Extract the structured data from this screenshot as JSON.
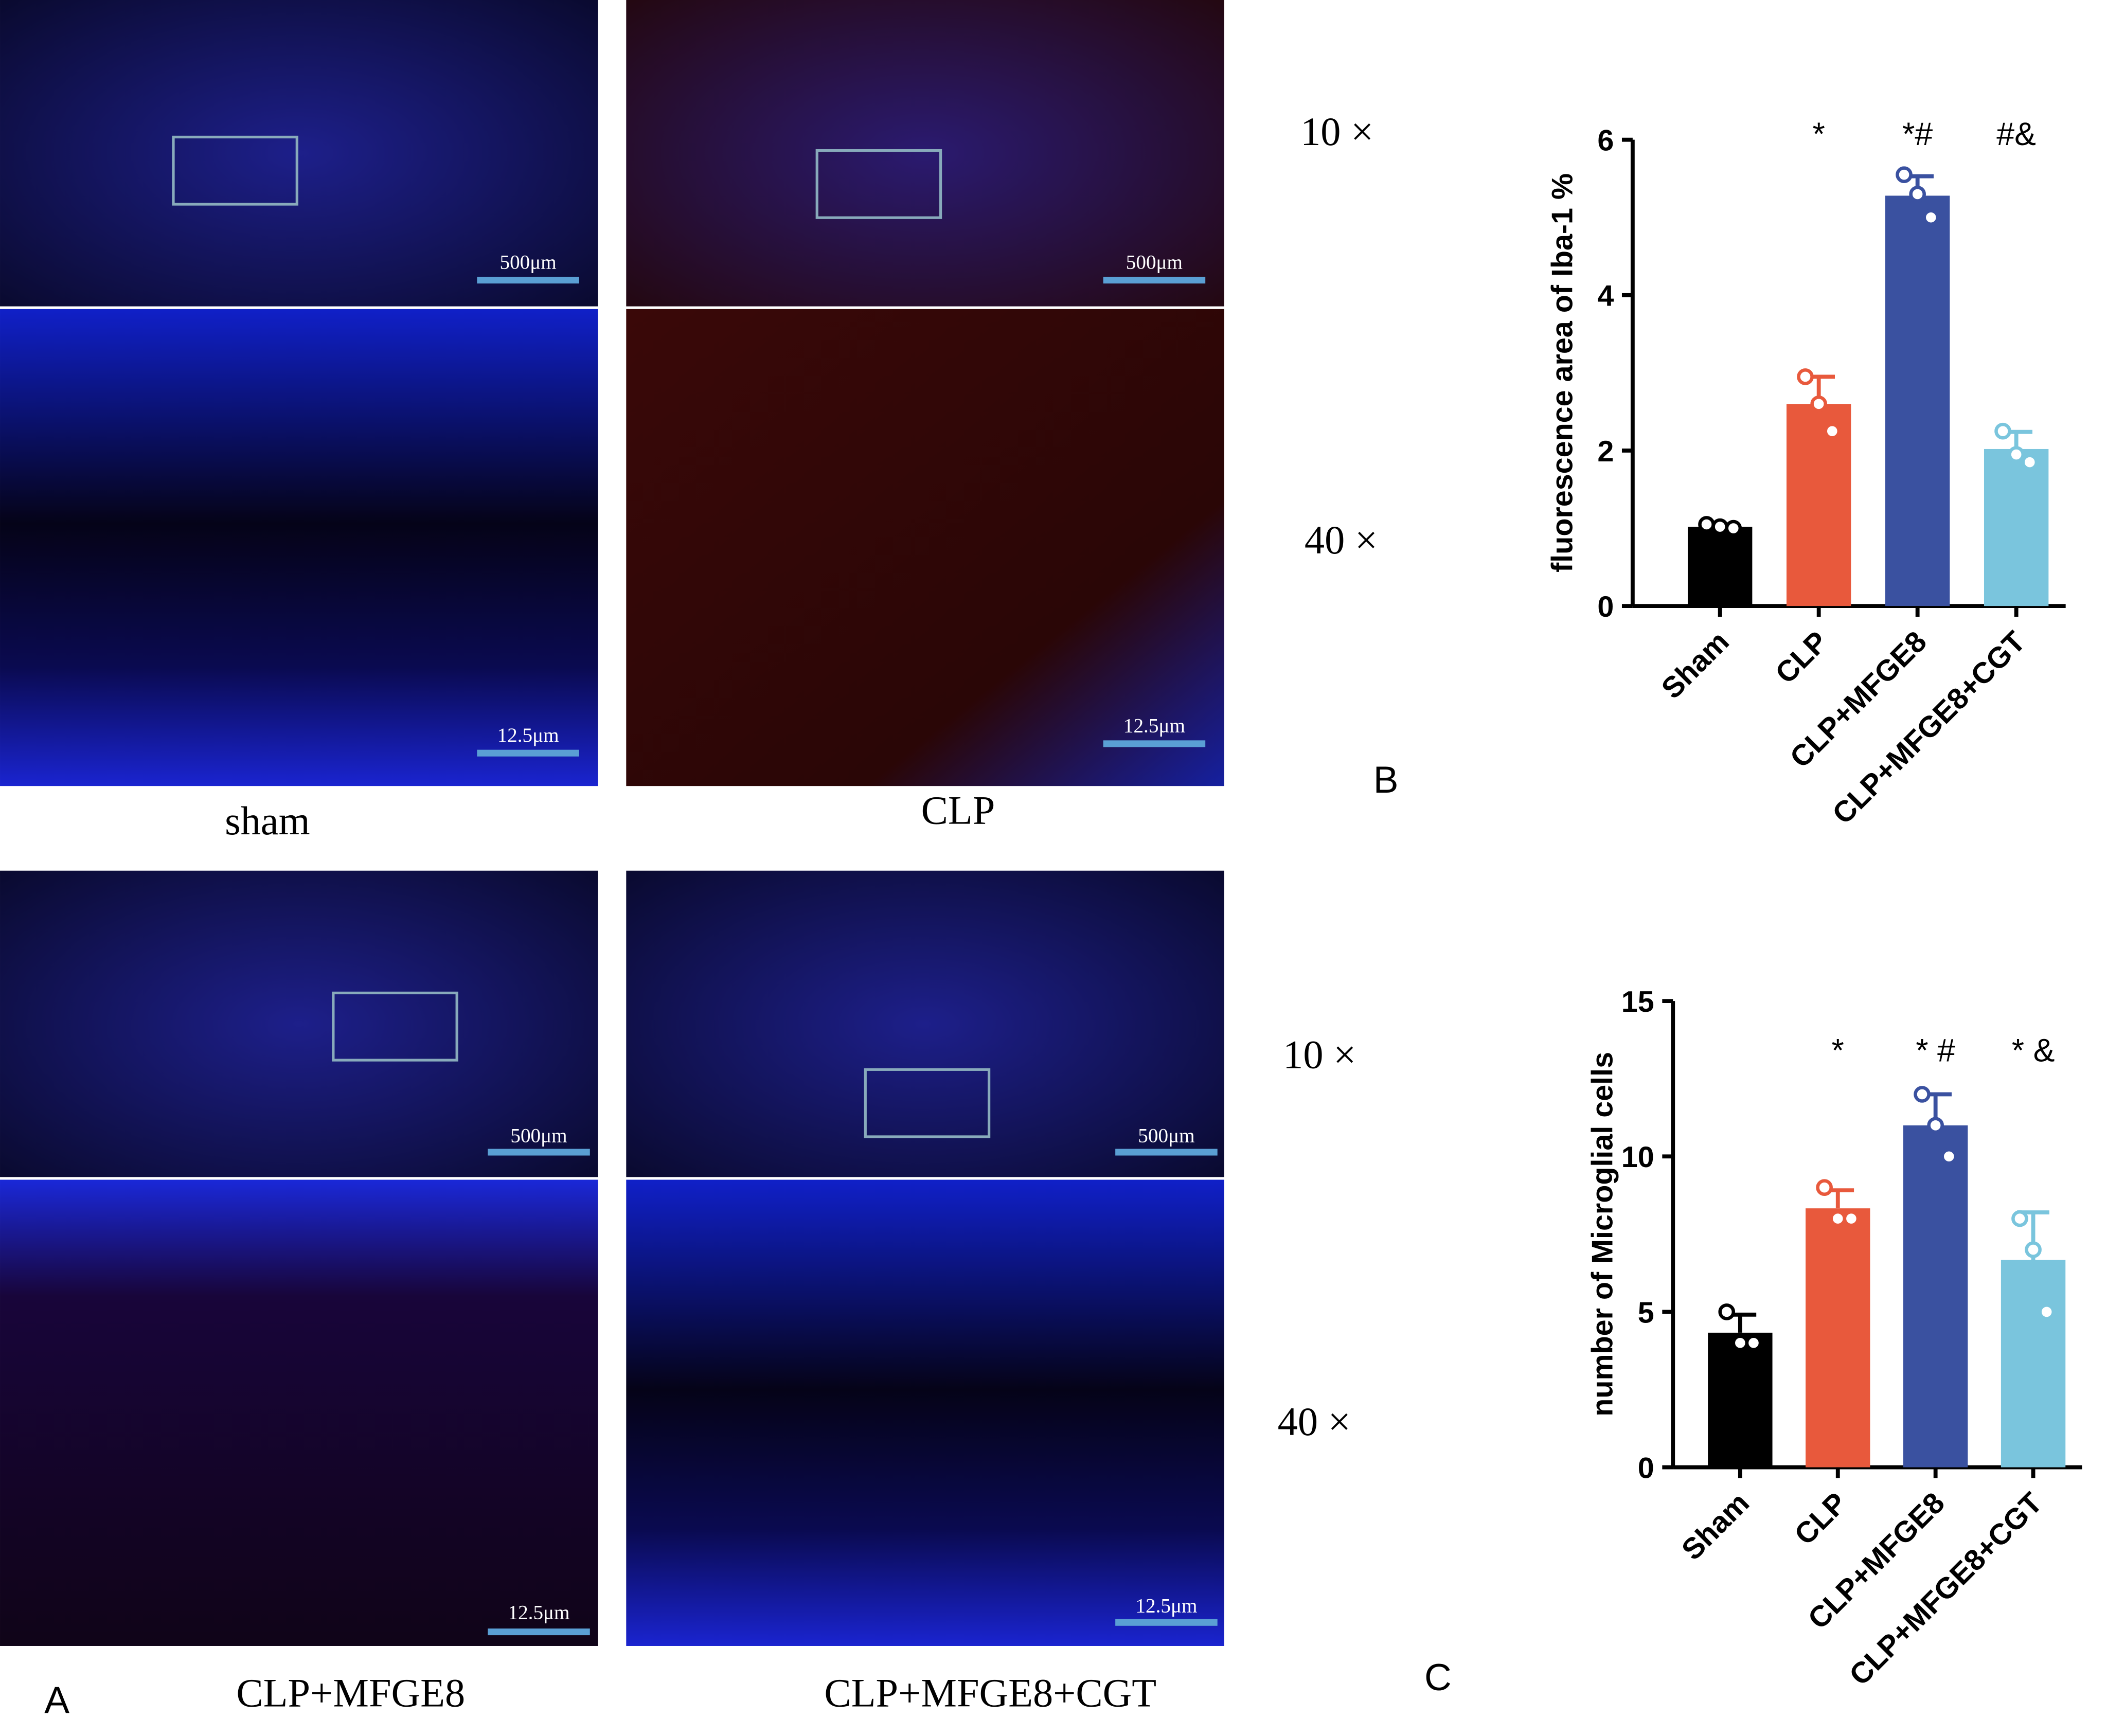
{
  "chart_data": [
    {
      "type": "bar",
      "ylabel": "fluorescence area of Iba-1 %",
      "categories": [
        "Sham",
        "CLP",
        "CLP+MFGE8",
        "CLP+MFGE8+CGT"
      ],
      "values": [
        1.02,
        2.6,
        5.28,
        2.02
      ],
      "errors": [
        0.03,
        0.35,
        0.25,
        0.22
      ],
      "points": [
        [
          1.05,
          1.02,
          1.0
        ],
        [
          2.95,
          2.6,
          2.25
        ],
        [
          5.55,
          5.3,
          5.0
        ],
        [
          2.25,
          1.95,
          1.85
        ]
      ],
      "annotations": [
        null,
        "*",
        "*#",
        "#&"
      ],
      "colors": [
        "#000000",
        "#e8593c",
        "#3a51a0",
        "#7ac5dd"
      ],
      "ylim": [
        0,
        6
      ],
      "yticks": [
        0,
        2,
        4,
        6
      ]
    },
    {
      "type": "bar",
      "ylabel": "number of Microglial cells",
      "categories": [
        "Sham",
        "CLP",
        "CLP+MFGE8",
        "CLP+MFGE8+CGT"
      ],
      "values": [
        4.33,
        8.33,
        11,
        6.67
      ],
      "errors": [
        0.58,
        0.58,
        1,
        1.53
      ],
      "points": [
        [
          5,
          4,
          4
        ],
        [
          9,
          8,
          8
        ],
        [
          12,
          11,
          10
        ],
        [
          8,
          7,
          5
        ]
      ],
      "annotations": [
        null,
        "*",
        "* #",
        "* &"
      ],
      "colors": [
        "#000000",
        "#e8593c",
        "#3a51a0",
        "#7ac5dd"
      ],
      "ylim": [
        0,
        15
      ],
      "yticks": [
        0,
        5,
        10,
        15
      ]
    }
  ],
  "figure": {
    "groups": [
      {
        "label": "sham",
        "scale_low": "500μm",
        "scale_high": "12.5μm"
      },
      {
        "label": "CLP",
        "scale_low": "500μm",
        "scale_high": "12.5μm"
      },
      {
        "label": "CLP+MFGE8",
        "scale_low": "500μm",
        "scale_high": "12.5μm"
      },
      {
        "label": "CLP+MFGE8+CGT",
        "scale_low": "500μm",
        "scale_high": "12.5μm"
      }
    ],
    "magnifications": [
      "10 ×",
      "40 ×",
      "10 ×",
      "40 ×"
    ],
    "panel_labels": [
      "A",
      "B",
      "C"
    ]
  }
}
